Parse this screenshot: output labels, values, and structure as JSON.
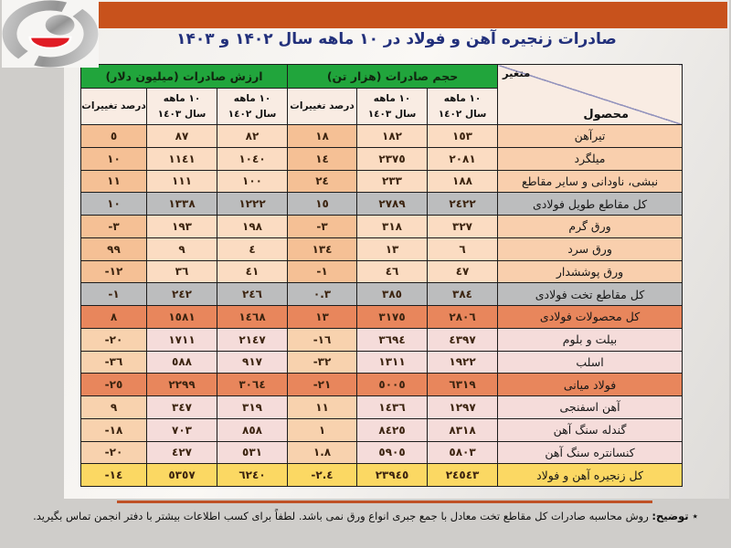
{
  "page": {
    "title": "صادرات زنجیره آهن و فولاد در ۱۰ ماهه سال ۱۴۰۲ و ۱۴۰۳",
    "banner_color": "#c8521c",
    "footnote_label": "٭ توضیح:",
    "footnote_text": "روش محاسبه صادرات کل مقاطع تخت معادل با جمع جبری انواع ورق نمی باشد. لطفاً برای کسب اطلاعات بیشتر با دفتر انجمن تماس بگیرید.",
    "logo_name": "iran-steel-association-logo"
  },
  "colors": {
    "header_green": "#21a53c",
    "row_peach": "#fbdcc2",
    "row_pink": "#f5dcda",
    "row_gray": "#bcbdbe",
    "row_salmon": "#e8865c",
    "row_yellow": "#fbd863",
    "title_blue": "#22307b",
    "footer_line": "#bf5126"
  },
  "table": {
    "corner": {
      "top_label": "متغیر",
      "bottom_label": "محصول"
    },
    "groups": {
      "volume": "حجم صادرات (هزار تن)",
      "value": "ارزش صادرات (میلیون دلار)"
    },
    "subheaders": {
      "y1402_line1": "١٠ ماهه",
      "y1402_line2": "سال ١٤٠٢",
      "y1403_line1": "١٠ ماهه",
      "y1403_line2": "سال ١٤٠٣",
      "pct": "درصد تغییرات"
    },
    "columns_note": "cells order: volume-1402, volume-1403, volume-pct-change, value-1402, value-1403, value-pct-change",
    "rows": [
      {
        "product": "تیرآهن",
        "style": "peach",
        "cells": [
          "١٥٣",
          "١٨٢",
          "١٨",
          "٨٢",
          "٨٧",
          "٥"
        ]
      },
      {
        "product": "میلگرد",
        "style": "peach",
        "cells": [
          "٢٠٨١",
          "٢٣٧٥",
          "١٤",
          "١٠٤٠",
          "١١٤١",
          "١٠"
        ]
      },
      {
        "product": "نبشی، ناودانی و سایر مقاطع",
        "style": "peach",
        "cells": [
          "١٨٨",
          "٢٣٣",
          "٢٤",
          "١٠٠",
          "١١١",
          "١١"
        ]
      },
      {
        "product": "کل مقاطع طویل فولادی",
        "style": "gray",
        "cells": [
          "٢٤٢٢",
          "٢٧٨٩",
          "١٥",
          "١٢٢٢",
          "١٣٣٨",
          "١٠"
        ]
      },
      {
        "product": "ورق گرم",
        "style": "peach",
        "cells": [
          "٣٢٧",
          "٣١٨",
          "-٣",
          "١٩٨",
          "١٩٣",
          "-٣"
        ]
      },
      {
        "product": "ورق سرد",
        "style": "peach",
        "cells": [
          "٦",
          "١٣",
          "١٣٤",
          "٤",
          "٩",
          "٩٩"
        ]
      },
      {
        "product": "ورق پوششدار",
        "style": "peach",
        "cells": [
          "٤٧",
          "٤٦",
          "-١",
          "٤١",
          "٣٦",
          "-١٢"
        ]
      },
      {
        "product": "کل مقاطع تخت فولادی",
        "style": "gray",
        "cells": [
          "٣٨٤",
          "٣٨٥",
          "٠.٣",
          "٢٤٦",
          "٢٤٢",
          "-١"
        ]
      },
      {
        "product": "کل محصولات فولادی",
        "style": "salmon",
        "cells": [
          "٢٨٠٦",
          "٣١٧٥",
          "١٣",
          "١٤٦٨",
          "١٥٨١",
          "٨"
        ]
      },
      {
        "product": "بیلت و بلوم",
        "style": "pink",
        "cells": [
          "٤٣٩٧",
          "٣٦٩٤",
          "-١٦",
          "٢١٤٧",
          "١٧١١",
          "-٢٠"
        ]
      },
      {
        "product": "اسلب",
        "style": "pink",
        "cells": [
          "١٩٢٢",
          "١٣١١",
          "-٣٢",
          "٩١٧",
          "٥٨٨",
          "-٣٦"
        ]
      },
      {
        "product": "فولاد میانی",
        "style": "salmon",
        "cells": [
          "٦٣١٩",
          "٥٠٠٥",
          "-٢١",
          "٣٠٦٤",
          "٢٢٩٩",
          "-٢٥"
        ]
      },
      {
        "product": "آهن اسفنجی",
        "style": "pink",
        "cells": [
          "١٢٩٧",
          "١٤٣٦",
          "١١",
          "٣١٩",
          "٣٤٧",
          "٩"
        ]
      },
      {
        "product": "گندله سنگ آهن",
        "style": "pink",
        "cells": [
          "٨٣١٨",
          "٨٤٢٥",
          "١",
          "٨٥٨",
          "٧٠٣",
          "-١٨"
        ]
      },
      {
        "product": "کنسانتره سنگ آهن",
        "style": "pink",
        "cells": [
          "٥٨٠٣",
          "٥٩٠٥",
          "١.٨",
          "٥٣١",
          "٤٢٧",
          "-٢٠"
        ]
      },
      {
        "product": "کل زنجیره آهن و فولاد",
        "style": "yellow",
        "cells": [
          "٢٤٥٤٣",
          "٢٣٩٤٥",
          "-٢.٤",
          "٦٢٤٠",
          "٥٣٥٧",
          "-١٤"
        ]
      }
    ]
  }
}
